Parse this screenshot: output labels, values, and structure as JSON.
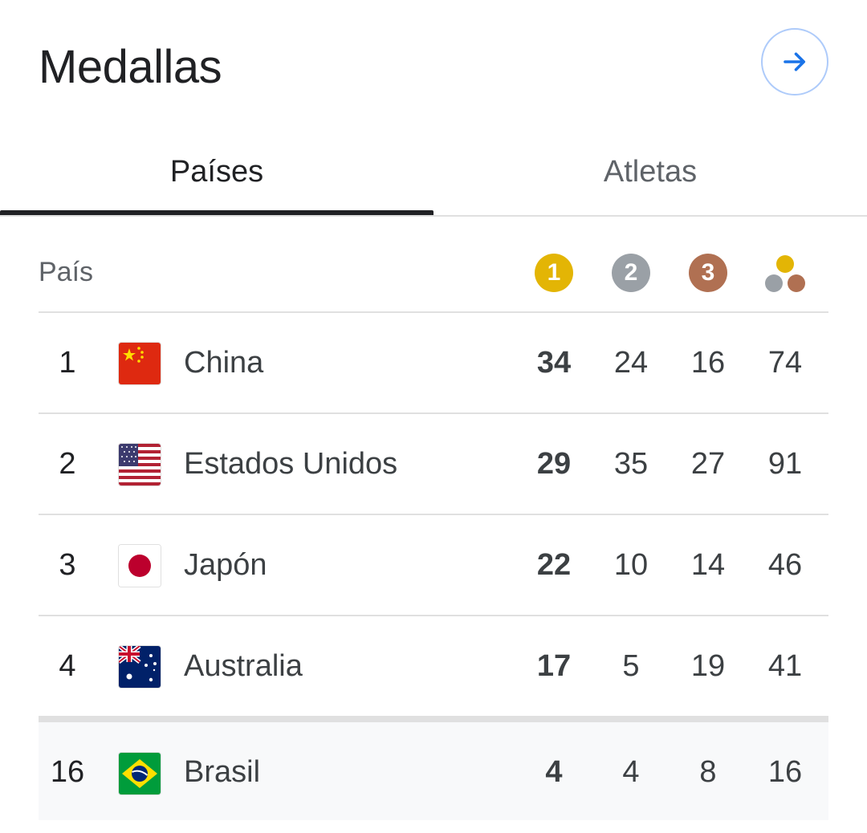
{
  "header": {
    "title": "Medallas"
  },
  "tabs": [
    {
      "label": "Países",
      "active": true
    },
    {
      "label": "Atletas",
      "active": false
    }
  ],
  "table": {
    "country_header": "País",
    "medal_headers": {
      "gold": "1",
      "silver": "2",
      "bronze": "3"
    },
    "rows": [
      {
        "rank": "1",
        "flag": "flag-china-icon",
        "country": "China",
        "gold": "34",
        "silver": "24",
        "bronze": "16",
        "total": "74"
      },
      {
        "rank": "2",
        "flag": "flag-usa-icon",
        "country": "Estados Unidos",
        "gold": "29",
        "silver": "35",
        "bronze": "27",
        "total": "91"
      },
      {
        "rank": "3",
        "flag": "flag-japan-icon",
        "country": "Japón",
        "gold": "22",
        "silver": "10",
        "bronze": "14",
        "total": "46"
      },
      {
        "rank": "4",
        "flag": "flag-australia-icon",
        "country": "Australia",
        "gold": "17",
        "silver": "5",
        "bronze": "19",
        "total": "41"
      },
      {
        "rank": "16",
        "flag": "flag-brazil-icon",
        "country": "Brasil",
        "gold": "4",
        "silver": "4",
        "bronze": "8",
        "total": "16",
        "highlighted": true
      }
    ]
  },
  "colors": {
    "gold": "#e3b505",
    "silver": "#9aa0a6",
    "bronze": "#b07052",
    "accent": "#1a73e8"
  }
}
